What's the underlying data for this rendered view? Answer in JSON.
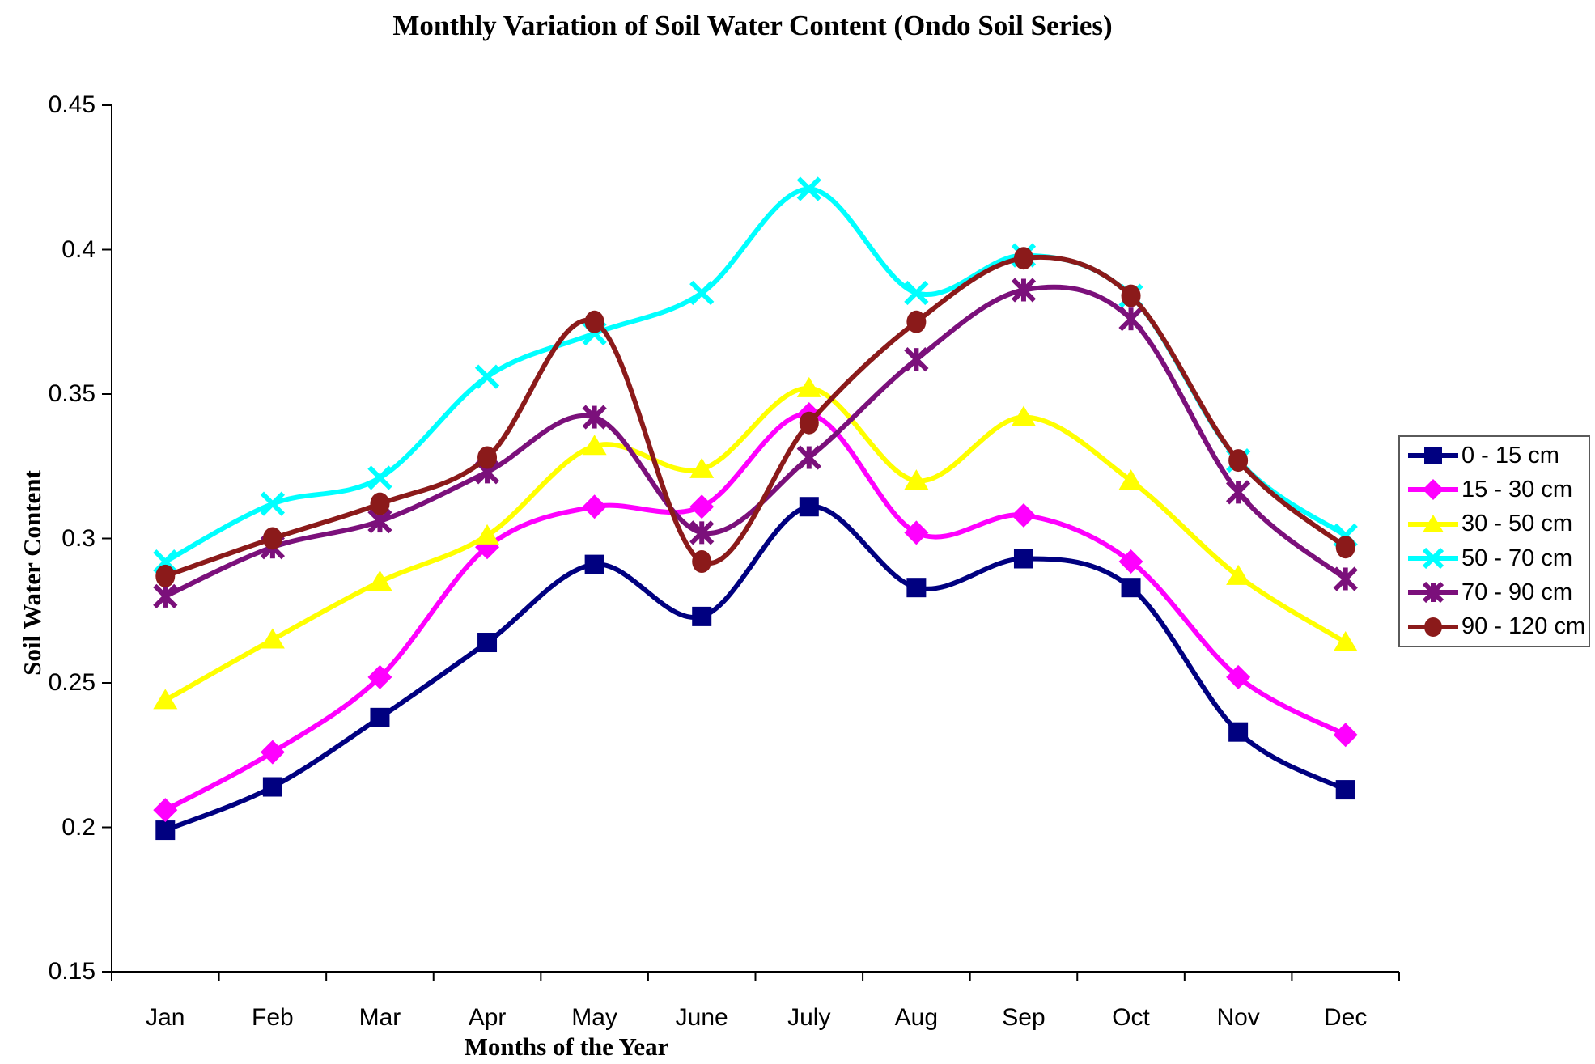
{
  "title": "Monthly Variation of Soil Water Content (Ondo Soil Series)",
  "axes": {
    "x_title": "Months of the Year",
    "y_title": "Soil Water Content",
    "y_tick_labels": [
      "0.45",
      "0.4",
      "0.35",
      "0.3",
      "0.25",
      "0.2",
      "0.15"
    ]
  },
  "chart_data": {
    "type": "line",
    "title": "Monthly Variation of Soil Water Content (Ondo Soil Series)",
    "xlabel": "Months of the Year",
    "ylabel": "Soil Water Content",
    "ylim": [
      0.15,
      0.45
    ],
    "y_tick_step": 0.05,
    "grid": false,
    "line_style": "smooth",
    "legend_position": "right",
    "categories": [
      "Jan",
      "Feb",
      "Mar",
      "Apr",
      "May",
      "June",
      "July",
      "Aug",
      "Sep",
      "Oct",
      "Nov",
      "Dec"
    ],
    "series": [
      {
        "name": "0 - 15 cm",
        "color": "#000080",
        "marker": "square",
        "values": [
          0.199,
          0.214,
          0.238,
          0.264,
          0.291,
          0.273,
          0.311,
          0.283,
          0.293,
          0.283,
          0.233,
          0.213
        ]
      },
      {
        "name": "15 - 30 cm",
        "color": "#FF00FF",
        "marker": "diamond",
        "values": [
          0.206,
          0.226,
          0.252,
          0.297,
          0.311,
          0.311,
          0.343,
          0.302,
          0.308,
          0.292,
          0.252,
          0.232
        ]
      },
      {
        "name": "30 - 50 cm",
        "color": "#FFFF00",
        "marker": "triangle",
        "values": [
          0.244,
          0.265,
          0.285,
          0.301,
          0.332,
          0.324,
          0.352,
          0.32,
          0.342,
          0.32,
          0.287,
          0.264
        ]
      },
      {
        "name": "50 - 70 cm",
        "color": "#00FFFF",
        "marker": "x",
        "values": [
          0.292,
          0.312,
          0.321,
          0.356,
          0.371,
          0.385,
          0.421,
          0.385,
          0.398,
          0.384,
          0.327,
          0.301
        ]
      },
      {
        "name": "70 - 90 cm",
        "color": "#7B107B",
        "marker": "asterisk",
        "values": [
          0.28,
          0.297,
          0.306,
          0.323,
          0.342,
          0.302,
          0.328,
          0.362,
          0.386,
          0.376,
          0.316,
          0.286
        ]
      },
      {
        "name": "90 - 120 cm",
        "color": "#8B1A1A",
        "marker": "circle",
        "values": [
          0.287,
          0.3,
          0.312,
          0.328,
          0.375,
          0.292,
          0.34,
          0.375,
          0.397,
          0.384,
          0.327,
          0.297
        ]
      }
    ]
  }
}
